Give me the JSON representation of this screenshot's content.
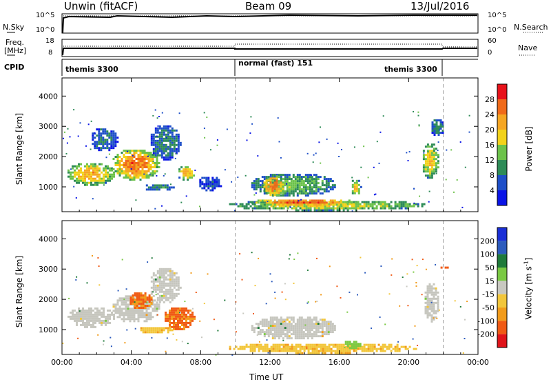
{
  "header": {
    "station": "Unwin (fitACF)",
    "beam": "Beam 09",
    "date": "13/Jul/2016"
  },
  "status_panel": {
    "left_labels": {
      "sky": "N.Sky",
      "freq": "Freq.",
      "freq_unit": "[MHz]",
      "cpid": "CPID"
    },
    "right_labels": {
      "search": "N.Search",
      "nave": "Nave"
    },
    "sky_ticks": [
      "10^5",
      "10^0"
    ],
    "search_ticks": [
      "10^5",
      "10^0"
    ],
    "freq_ticks": [
      "18",
      "8"
    ],
    "nave_ticks": [
      "60",
      "0"
    ],
    "cpid_segments": [
      {
        "label": "themis 3300",
        "start_hour": 0,
        "end_hour": 10.0
      },
      {
        "label": "normal (fast) 151",
        "start_hour": 10.0,
        "end_hour": 22.0
      },
      {
        "label": "themis 3300",
        "start_hour": 22.0,
        "end_hour": 24
      }
    ]
  },
  "colors": {
    "power": [
      "#0a14e6",
      "#1e4fc8",
      "#2e8b57",
      "#6cc24a",
      "#f2d21a",
      "#f5a623",
      "#f06a1a",
      "#e8121a"
    ],
    "velocity": [
      "#1a2fd6",
      "#2c5bbd",
      "#1f7a3a",
      "#7ac943",
      "#c8c8c0",
      "#f2c63a",
      "#f29b1a",
      "#f05a14",
      "#e0141a"
    ],
    "ground_scatter": "#c6c6be"
  },
  "chart_data": [
    {
      "type": "heatmap",
      "name": "power",
      "ylabel": "Slant Range [km]",
      "xlabel": "Time UT",
      "x_ticks": [
        "00:00",
        "04:00",
        "08:00",
        "12:00",
        "16:00",
        "20:00",
        "00:00"
      ],
      "y_ticks": [
        "1000",
        "2000",
        "3000",
        "4000"
      ],
      "xlim_hours": [
        0,
        24
      ],
      "ylim_km": [
        180,
        4600
      ],
      "colorbar": {
        "label": "Power [dB]",
        "ticks": [
          "4",
          "8",
          "12",
          "16",
          "20",
          "24",
          "28"
        ],
        "range": [
          0,
          32
        ]
      },
      "regions": [
        {
          "t0": 0.2,
          "t1": 3.0,
          "r0": 1080,
          "r1": 1850,
          "level": 22
        },
        {
          "t0": 2.8,
          "t1": 5.6,
          "r0": 1250,
          "r1": 2300,
          "level": 26
        },
        {
          "t0": 5.0,
          "t1": 6.8,
          "r0": 1900,
          "r1": 3100,
          "level": 10
        },
        {
          "t0": 1.6,
          "t1": 3.2,
          "r0": 2200,
          "r1": 3000,
          "level": 9
        },
        {
          "t0": 6.6,
          "t1": 7.6,
          "r0": 1250,
          "r1": 1750,
          "level": 22
        },
        {
          "t0": 4.6,
          "t1": 6.4,
          "r0": 900,
          "r1": 1150,
          "level": 10
        },
        {
          "t0": 7.8,
          "t1": 9.2,
          "r0": 900,
          "r1": 1400,
          "level": 6
        },
        {
          "t0": 9.4,
          "t1": 21.0,
          "r0": 250,
          "r1": 600,
          "level": 18
        },
        {
          "t0": 10.8,
          "t1": 17.0,
          "r0": 400,
          "r1": 650,
          "level": 28
        },
        {
          "t0": 10.8,
          "t1": 15.8,
          "r0": 700,
          "r1": 1500,
          "level": 14
        },
        {
          "t0": 11.5,
          "t1": 12.8,
          "r0": 700,
          "r1": 1450,
          "level": 26
        },
        {
          "t0": 16.6,
          "t1": 17.2,
          "r0": 750,
          "r1": 1300,
          "level": 20
        },
        {
          "t0": 20.7,
          "t1": 21.7,
          "r0": 1300,
          "r1": 2500,
          "level": 20
        },
        {
          "t0": 21.2,
          "t1": 22.0,
          "r0": 2700,
          "r1": 3300,
          "level": 10
        }
      ]
    },
    {
      "type": "heatmap",
      "name": "velocity",
      "ylabel": "Slant Range [km]",
      "xlabel": "Time UT",
      "x_ticks": [
        "00:00",
        "04:00",
        "08:00",
        "12:00",
        "16:00",
        "20:00",
        "00:00"
      ],
      "y_ticks": [
        "1000",
        "2000",
        "3000",
        "4000"
      ],
      "xlim_hours": [
        0,
        24
      ],
      "ylim_km": [
        180,
        4600
      ],
      "colorbar": {
        "label": "Velocity [m s^-1]",
        "ticks": [
          "200",
          "100",
          "50",
          "15",
          "-15",
          "-50",
          "-100",
          "-200"
        ],
        "range": [
          -250,
          250
        ]
      },
      "regions": [
        {
          "t0": 0.2,
          "t1": 3.0,
          "r0": 1100,
          "r1": 1800,
          "level": 0
        },
        {
          "t0": 2.8,
          "t1": 5.6,
          "r0": 1250,
          "r1": 2200,
          "level": 0
        },
        {
          "t0": 3.8,
          "t1": 5.2,
          "r0": 1700,
          "r1": 2300,
          "level": -110
        },
        {
          "t0": 5.0,
          "t1": 6.8,
          "r0": 1900,
          "r1": 3100,
          "level": 0
        },
        {
          "t0": 5.8,
          "t1": 7.6,
          "r0": 1000,
          "r1": 1800,
          "level": -120
        },
        {
          "t0": 4.4,
          "t1": 6.4,
          "r0": 900,
          "r1": 1150,
          "level": -40
        },
        {
          "t0": 9.4,
          "t1": 20.5,
          "r0": 250,
          "r1": 600,
          "level": -40
        },
        {
          "t0": 10.8,
          "t1": 15.8,
          "r0": 700,
          "r1": 1500,
          "level": 0
        },
        {
          "t0": 16.2,
          "t1": 17.2,
          "r0": 400,
          "r1": 700,
          "level": 30
        },
        {
          "t0": 20.8,
          "t1": 21.7,
          "r0": 1300,
          "r1": 2600,
          "level": 0
        },
        {
          "t0": 21.6,
          "t1": 22.4,
          "r0": 3050,
          "r1": 3150,
          "level": -230
        }
      ]
    }
  ]
}
